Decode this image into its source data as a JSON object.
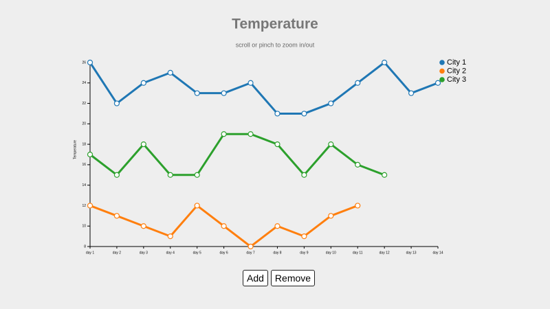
{
  "chart_data": {
    "type": "line",
    "title": "Temperature",
    "subtitle": "scroll or pinch to zoom in/out",
    "y_label": "Temperature",
    "categories": [
      "day 1",
      "day 2",
      "day 3",
      "day 4",
      "day 5",
      "day 6",
      "day 7",
      "day 8",
      "day 9",
      "day 10",
      "day 11",
      "day 12",
      "day 13",
      "day 14"
    ],
    "series": [
      {
        "name": "City 1",
        "color": "#1f77b4",
        "values": [
          26,
          22,
          24,
          25,
          23,
          23,
          24,
          21,
          21,
          22,
          24,
          26,
          23,
          24
        ]
      },
      {
        "name": "City 2",
        "color": "#ff7f0e",
        "values": [
          12,
          11,
          10,
          9,
          12,
          10,
          8,
          10,
          9,
          11,
          12,
          null,
          null,
          null
        ]
      },
      {
        "name": "City 3",
        "color": "#2ca02c",
        "values": [
          17,
          15,
          18,
          15,
          15,
          19,
          19,
          18,
          15,
          18,
          16,
          15,
          null,
          null
        ]
      }
    ],
    "ylim": [
      8,
      26
    ],
    "yticks": [
      8,
      10,
      12,
      14,
      16,
      18,
      20,
      22,
      24,
      26
    ],
    "grid": false,
    "legend": "top-right"
  },
  "buttons": [
    "Add",
    "Remove"
  ]
}
